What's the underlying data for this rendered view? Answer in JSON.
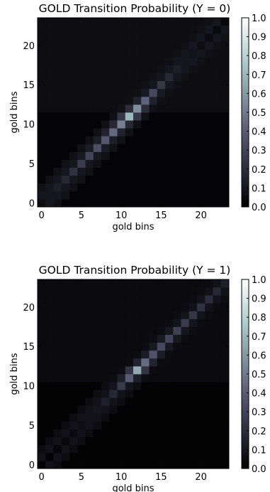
{
  "chart_data": [
    {
      "type": "heatmap",
      "title": "GOLD Transition Probability (Y = 0)",
      "xlabel": "gold bins",
      "ylabel": "gold bins",
      "xticks": [
        "0",
        "5",
        "10",
        "15",
        "20"
      ],
      "yticks": [
        "0",
        "5",
        "10",
        "15",
        "20"
      ],
      "xlim": [
        -0.5,
        23.5
      ],
      "ylim": [
        -0.5,
        23.5
      ],
      "colorbar": {
        "ticks": [
          "0.0",
          "0.1",
          "0.2",
          "0.3",
          "0.4",
          "0.5",
          "0.6",
          "0.7",
          "0.8",
          "0.9",
          "1.0"
        ],
        "range": [
          0,
          1
        ],
        "colormap": "bone"
      },
      "diagonal_peak": {
        "center": 11,
        "peak_value": 0.7,
        "bandwidth": 3.0
      },
      "diagonal_values": [
        0.06,
        0.1,
        0.14,
        0.18,
        0.22,
        0.26,
        0.3,
        0.34,
        0.38,
        0.44,
        0.52,
        0.7,
        0.56,
        0.42,
        0.32,
        0.24,
        0.18,
        0.13,
        0.1,
        0.08,
        0.06,
        0.05,
        0.04,
        0.03
      ],
      "off_diagonal": {
        "near": 0.1,
        "background": 0.04,
        "dark_rows_below": 12
      }
    },
    {
      "type": "heatmap",
      "title": "GOLD Transition Probability (Y = 1)",
      "xlabel": "gold bins",
      "ylabel": "gold bins",
      "xticks": [
        "0",
        "5",
        "10",
        "15",
        "20"
      ],
      "yticks": [
        "0",
        "5",
        "10",
        "15",
        "20"
      ],
      "xlim": [
        -0.5,
        23.5
      ],
      "ylim": [
        -0.5,
        23.5
      ],
      "colorbar": {
        "ticks": [
          "0.0",
          "0.1",
          "0.2",
          "0.3",
          "0.4",
          "0.5",
          "0.6",
          "0.7",
          "0.8",
          "0.9",
          "1.0"
        ],
        "range": [
          0,
          1
        ],
        "colormap": "bone"
      },
      "diagonal_peak": {
        "center": 12,
        "peak_value": 0.65,
        "bandwidth": 3.0
      },
      "diagonal_values": [
        0.02,
        0.02,
        0.03,
        0.04,
        0.05,
        0.06,
        0.08,
        0.1,
        0.14,
        0.18,
        0.26,
        0.4,
        0.65,
        0.45,
        0.36,
        0.32,
        0.3,
        0.28,
        0.26,
        0.24,
        0.22,
        0.2,
        0.18,
        0.14
      ],
      "off_diagonal": {
        "near": 0.08,
        "background": 0.03,
        "dark_rows_below": 11
      }
    }
  ]
}
